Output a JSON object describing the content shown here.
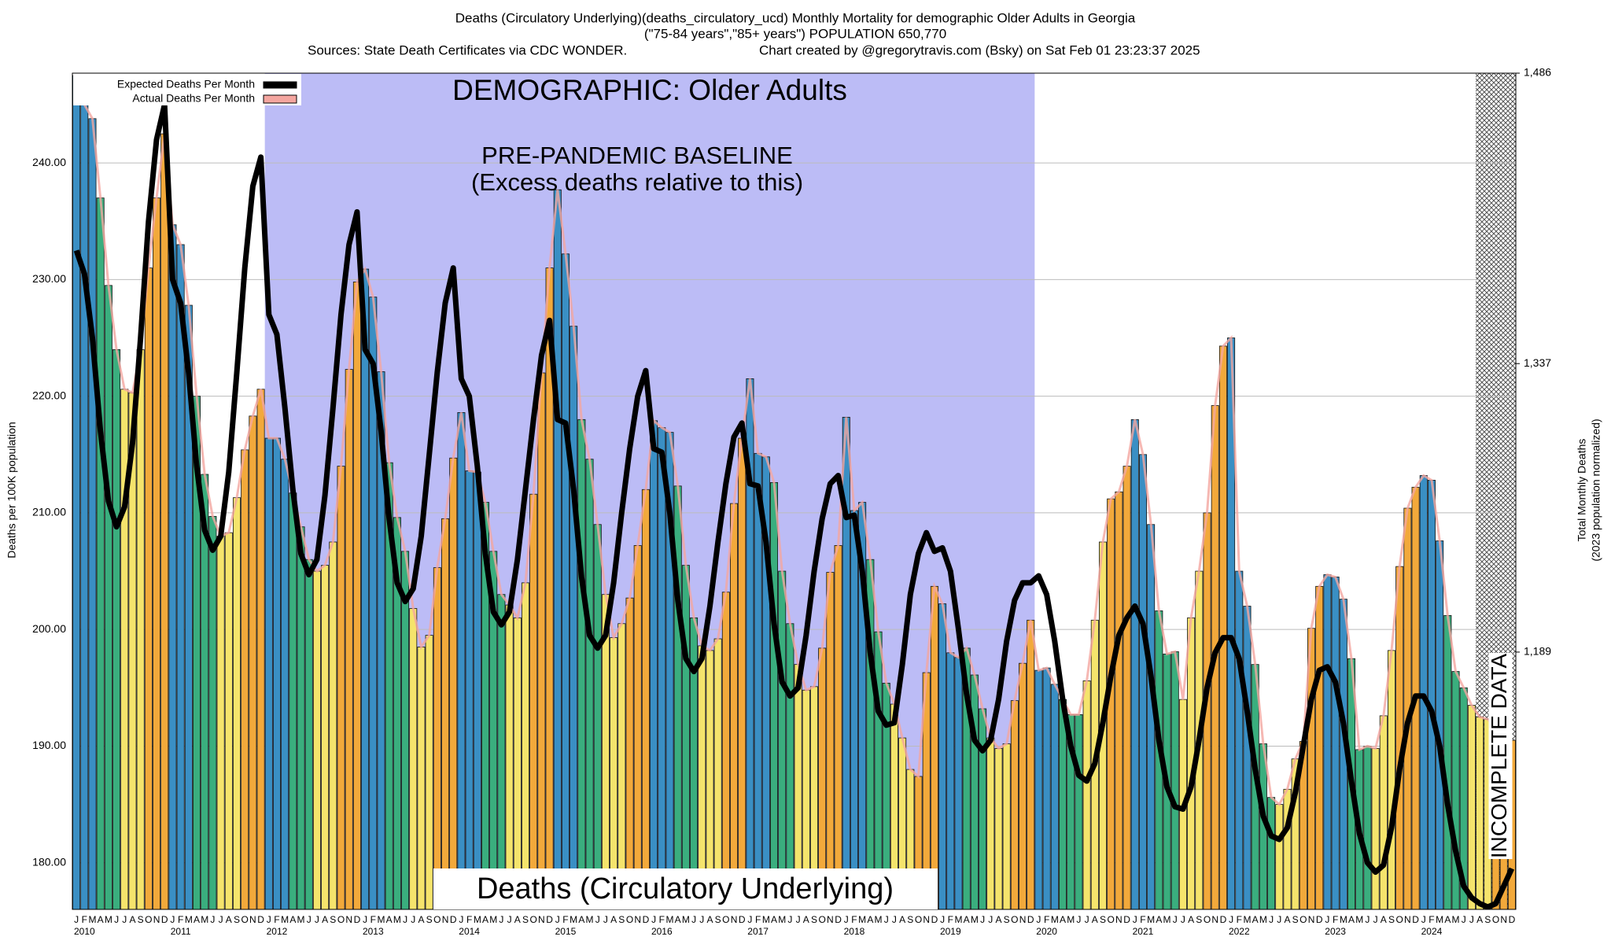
{
  "chart_data": {
    "type": "bar",
    "title": "Deaths (Circulatory Underlying)(deaths_circulatory_ucd) Monthly Mortality for demographic Older Adults in Georgia",
    "subtitle": "(\"75-84 years\",\"85+ years\") POPULATION 650,770",
    "source": "Sources: State Death Certificates via CDC WONDER.",
    "credit": "Chart created by @gregorytravis.com (Bsky) on Sat Feb 01 23:23:37 2025",
    "y_label": "Deaths per 100K population",
    "y2_label": "Total Monthly Deaths",
    "y2_sublabel": "(2023 population normalized)",
    "annotations": {
      "demographic": "DEMOGRAPHIC: Older Adults",
      "baseline_title": "PRE-PANDEMIC BASELINE",
      "baseline_note": "(Excess deaths relative to this)",
      "cause": "Deaths (Circulatory Underlying)",
      "incomplete": "INCOMPLETE DATA"
    },
    "categories": [
      "J",
      "F",
      "M",
      "A",
      "M",
      "J",
      "J",
      "A",
      "S",
      "O",
      "N",
      "D",
      "J",
      "F",
      "M",
      "A",
      "M",
      "J",
      "J",
      "A",
      "S",
      "O",
      "N",
      "D",
      "J",
      "F",
      "M",
      "A",
      "M",
      "J",
      "J",
      "A",
      "S",
      "O",
      "N",
      "D",
      "J",
      "F",
      "M",
      "A",
      "M",
      "J",
      "J",
      "A",
      "S",
      "O",
      "N",
      "D",
      "J",
      "F",
      "M",
      "A",
      "M",
      "J",
      "J",
      "A",
      "S",
      "O",
      "N",
      "D",
      "J",
      "F",
      "M",
      "A",
      "M",
      "J",
      "J",
      "A",
      "S",
      "O",
      "N",
      "D",
      "J",
      "F",
      "M",
      "A",
      "M",
      "J",
      "J",
      "A",
      "S",
      "O",
      "N",
      "D",
      "J",
      "F",
      "M",
      "A",
      "M",
      "J",
      "J",
      "A",
      "S",
      "O",
      "N",
      "D",
      "J",
      "F",
      "M",
      "A",
      "M",
      "J",
      "J",
      "A",
      "S",
      "O",
      "N",
      "D",
      "J",
      "F",
      "M",
      "A",
      "M",
      "J",
      "J",
      "A",
      "S",
      "O",
      "N",
      "D",
      "J",
      "F",
      "M",
      "A",
      "M",
      "J",
      "J",
      "A",
      "S",
      "O",
      "N",
      "D",
      "J",
      "F",
      "M",
      "A",
      "M",
      "J",
      "J",
      "A",
      "S",
      "O",
      "N",
      "D",
      "J",
      "F",
      "M",
      "A",
      "M",
      "J",
      "J",
      "A",
      "S",
      "O",
      "N",
      "D",
      "J",
      "F",
      "M",
      "A",
      "M",
      "J",
      "J",
      "A",
      "S",
      "O",
      "N",
      "D",
      "J",
      "F",
      "M",
      "A",
      "M",
      "J",
      "J",
      "A",
      "S",
      "O",
      "N",
      "D"
    ],
    "year_labels": [
      "2010",
      "2011",
      "2012",
      "2013",
      "2014",
      "2015",
      "2016",
      "2017",
      "2018",
      "2019",
      "2020",
      "2021",
      "2022",
      "2023",
      "2024"
    ],
    "bar_colors": [
      "#3a8fc4",
      "#3a8fc4",
      "#3a8fc4",
      "#3aae7e",
      "#3aae7e",
      "#3aae7e",
      "#f5e46c",
      "#f5e46c",
      "#f5e46c",
      "#f2a93b",
      "#f2a93b",
      "#f2a93b"
    ],
    "series": [
      {
        "name": "Expected Deaths Per Month",
        "color": "#000000",
        "values": [
          232.5,
          230.5,
          225.0,
          217.0,
          211.0,
          208.8,
          210.5,
          216.0,
          225.0,
          235.0,
          242.0,
          245.0,
          230.0,
          228.0,
          222.0,
          214.0,
          208.5,
          206.8,
          208.0,
          213.5,
          222.0,
          231.0,
          238.0,
          240.5,
          227.0,
          225.3,
          219.0,
          212.0,
          206.5,
          204.7,
          206.0,
          211.5,
          219.0,
          227.0,
          233.0,
          235.8,
          224.0,
          222.8,
          217.0,
          209.5,
          204.0,
          202.4,
          203.5,
          208.0,
          215.0,
          222.0,
          228.0,
          231.0,
          221.5,
          220.0,
          214.0,
          206.5,
          201.5,
          200.4,
          201.5,
          206.0,
          212.0,
          218.0,
          223.5,
          226.5,
          218.0,
          217.7,
          212.0,
          204.5,
          199.5,
          198.4,
          199.5,
          204.0,
          210.0,
          215.5,
          220.0,
          222.2,
          215.5,
          215.2,
          210.0,
          202.5,
          197.5,
          196.4,
          197.5,
          202.0,
          207.5,
          212.5,
          216.5,
          217.7,
          212.5,
          212.3,
          207.5,
          200.5,
          195.5,
          194.3,
          195.0,
          199.5,
          205.0,
          209.5,
          212.5,
          213.2,
          209.6,
          209.8,
          205.0,
          198.0,
          193.0,
          191.8,
          192.0,
          197.0,
          203.0,
          206.5,
          208.3,
          206.7,
          207.0,
          205.0,
          200.0,
          194.5,
          190.5,
          189.6,
          190.5,
          194.0,
          199.0,
          202.5,
          204.0,
          204.0,
          204.6,
          203.0,
          199.0,
          194.0,
          190.0,
          187.5,
          187.0,
          188.5,
          192.0,
          196.0,
          199.5,
          201.0,
          202.0,
          200.5,
          196.0,
          190.5,
          186.5,
          184.8,
          184.6,
          186.5,
          190.5,
          195.0,
          198.0,
          199.3,
          199.3,
          197.5,
          193.0,
          188.0,
          184.0,
          182.3,
          182.0,
          183.0,
          186.0,
          190.0,
          194.0,
          196.5,
          196.8,
          195.5,
          192.0,
          187.0,
          182.5,
          180.0,
          179.2,
          179.8,
          183.0,
          188.0,
          192.0,
          194.3,
          194.3,
          193.0,
          190.0,
          185.0,
          181.0,
          178.0,
          177.0,
          176.5,
          176.2,
          176.5,
          178.0,
          179.5
        ]
      },
      {
        "name": "Actual Deaths Per Month",
        "color": "#f4a6a0",
        "values": [
          247.5,
          245.0,
          243.8,
          237.0,
          229.5,
          224.0,
          220.6,
          220.3,
          224.0,
          231.0,
          237.0,
          242.5,
          234.7,
          233.0,
          227.8,
          220.0,
          213.3,
          209.7,
          208.0,
          208.3,
          211.3,
          215.4,
          218.3,
          220.6,
          216.4,
          216.4,
          214.6,
          211.7,
          208.8,
          206.0,
          205.0,
          205.5,
          207.5,
          214.0,
          222.3,
          229.8,
          230.9,
          228.5,
          222.1,
          214.3,
          209.6,
          206.7,
          201.8,
          198.5,
          199.5,
          205.3,
          209.5,
          214.7,
          218.6,
          213.6,
          213.5,
          210.9,
          206.7,
          203.0,
          202.1,
          201.0,
          204.0,
          211.6,
          222.0,
          231.0,
          237.7,
          232.2,
          226.0,
          218.0,
          214.6,
          209.0,
          203.0,
          199.3,
          200.5,
          202.7,
          207.2,
          212.0,
          217.9,
          217.3,
          216.9,
          212.3,
          205.5,
          201.0,
          198.6,
          198.2,
          199.2,
          203.2,
          210.8,
          216.4,
          221.5,
          215.1,
          214.8,
          212.6,
          205.0,
          200.5,
          197.0,
          194.8,
          195.1,
          198.4,
          204.9,
          207.2,
          218.2,
          210.2,
          210.9,
          206.0,
          199.8,
          195.4,
          193.6,
          190.7,
          188.0,
          187.4,
          196.3,
          203.7,
          202.2,
          198.0,
          197.6,
          198.4,
          196.1,
          193.2,
          190.7,
          189.8,
          190.2,
          193.9,
          197.1,
          200.8,
          196.5,
          196.7,
          195.3,
          194.0,
          192.7,
          192.7,
          195.6,
          200.8,
          207.5,
          211.2,
          211.8,
          214.0,
          218.0,
          215.0,
          209.0,
          201.6,
          197.9,
          198.1,
          194.0,
          201.0,
          205.0,
          210.0,
          219.2,
          224.3,
          225.0,
          205.0,
          202.0,
          197.0,
          190.2,
          185.6,
          185.0,
          186.3,
          188.9,
          190.4,
          200.1,
          203.7,
          204.7,
          204.5,
          202.6,
          197.5,
          189.7,
          190.0,
          189.8,
          192.6,
          198.2,
          205.4,
          210.4,
          212.2,
          213.2,
          212.8,
          207.6,
          201.2,
          196.4,
          195.0,
          193.5,
          192.5,
          192.3,
          191.6,
          191.0,
          190.5
        ]
      }
    ],
    "ylim": [
      176,
      247.7
    ],
    "yticks": [
      {
        "value": 180,
        "label": "180.00"
      },
      {
        "value": 190,
        "label": "190.00"
      },
      {
        "value": 200,
        "label": "200.00"
      },
      {
        "value": 210,
        "label": "210.00"
      },
      {
        "value": 220,
        "label": "220.00"
      },
      {
        "value": 230,
        "label": "230.00"
      },
      {
        "value": 240,
        "label": "240.00"
      }
    ],
    "y2lim": [
      1057,
      1486
    ],
    "y2ticks": [
      {
        "value": 1189,
        "label": "1,189"
      },
      {
        "value": 1337,
        "label": "1,337"
      },
      {
        "value": 1486,
        "label": "1,486"
      }
    ],
    "grid": true,
    "baseline_span": [
      24,
      120
    ],
    "baseline_color": "#bcbcf6",
    "incomplete_from": 175,
    "legend": "upper left"
  }
}
